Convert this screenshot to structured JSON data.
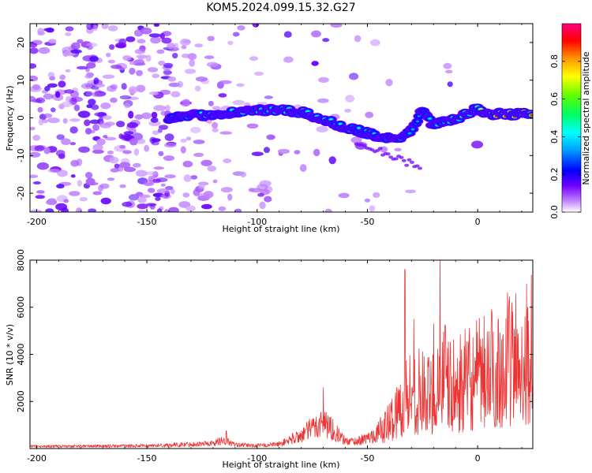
{
  "title": "KOM5.2024.099.15.32.G27",
  "colorbar": {
    "label": "Normalized spectral amplitude",
    "ticks": [
      "0.0",
      "0.2",
      "0.4",
      "0.6",
      "0.8"
    ],
    "tick_values": [
      0.0,
      0.2,
      0.4,
      0.6,
      0.8
    ]
  },
  "chart_data": [
    {
      "type": "heatmap",
      "title": "",
      "xlabel": "Height of straight line (km)",
      "ylabel": "Frequency (Hz)",
      "xlim": [
        -203,
        25
      ],
      "ylim": [
        -25,
        25
      ],
      "xticks": [
        -200,
        -150,
        -100,
        -50,
        0
      ],
      "xtick_labels": [
        "-200",
        "-150",
        "-100",
        "-50",
        "0"
      ],
      "yticks": [
        -20,
        -10,
        0,
        10,
        20
      ],
      "ytick_labels": [
        "-20",
        "-10",
        "0",
        "10",
        "20"
      ],
      "colormap": "rainbow",
      "value_range": [
        0,
        1
      ],
      "ridge": {
        "x": [
          -140,
          -130,
          -120,
          -110,
          -100,
          -90,
          -80,
          -70,
          -60,
          -50,
          -45,
          -40,
          -35,
          -30,
          -25,
          -20,
          -15,
          -10,
          -5,
          0,
          5,
          10,
          20,
          25
        ],
        "freq": [
          0,
          0.5,
          1,
          1.5,
          2,
          2,
          1.5,
          -0.5,
          -2.5,
          -4,
          -5,
          -5.5,
          -6,
          -3,
          2,
          -2,
          -1,
          -0.5,
          1,
          2.5,
          1,
          1,
          1,
          1
        ],
        "strength": [
          0.3,
          0.4,
          0.45,
          0.5,
          0.5,
          0.5,
          0.5,
          0.45,
          0.4,
          0.4,
          0.4,
          0.35,
          0.4,
          0.35,
          0.3,
          0.45,
          0.5,
          0.5,
          0.55,
          0.6,
          0.95,
          0.95,
          0.95,
          0.9
        ]
      }
    },
    {
      "type": "line",
      "title": "",
      "xlabel": "Height of straight line (km)",
      "ylabel": "SNR (10 * v/v)",
      "xlim": [
        -203,
        25
      ],
      "ylim": [
        0,
        8000
      ],
      "xticks": [
        -200,
        -150,
        -100,
        -50,
        0
      ],
      "xtick_labels": [
        "-200",
        "-150",
        "-100",
        "-50",
        "0"
      ],
      "yticks": [
        2000,
        4000,
        6000,
        8000
      ],
      "ytick_labels": [
        "2000",
        "4000",
        "6000",
        "8000"
      ],
      "series": [
        {
          "color": "#ee3333",
          "envelope_x": [
            -203,
            -150,
            -120,
            -115,
            -110,
            -100,
            -90,
            -80,
            -75,
            -70,
            -67,
            -63,
            -60,
            -55,
            -50,
            -45,
            -40,
            -35,
            -32,
            -30,
            -28,
            -25,
            -22,
            -20,
            -18,
            -16,
            -14,
            -12,
            -10,
            -5,
            0,
            5,
            10,
            15,
            20,
            25
          ],
          "envelope_y": [
            150,
            180,
            350,
            600,
            250,
            200,
            300,
            900,
            1400,
            1800,
            1500,
            900,
            500,
            500,
            700,
            1100,
            1900,
            3000,
            3800,
            4300,
            3800,
            4000,
            3600,
            4200,
            4700,
            5500,
            4800,
            4200,
            4300,
            4700,
            5000,
            5400,
            5800,
            6200,
            6600,
            6900
          ],
          "peaks_x": [
            -114,
            -70,
            -33,
            -29,
            -17,
            -20
          ],
          "peaks_y": [
            750,
            2600,
            7600,
            5500,
            8000,
            5300
          ]
        }
      ]
    }
  ]
}
